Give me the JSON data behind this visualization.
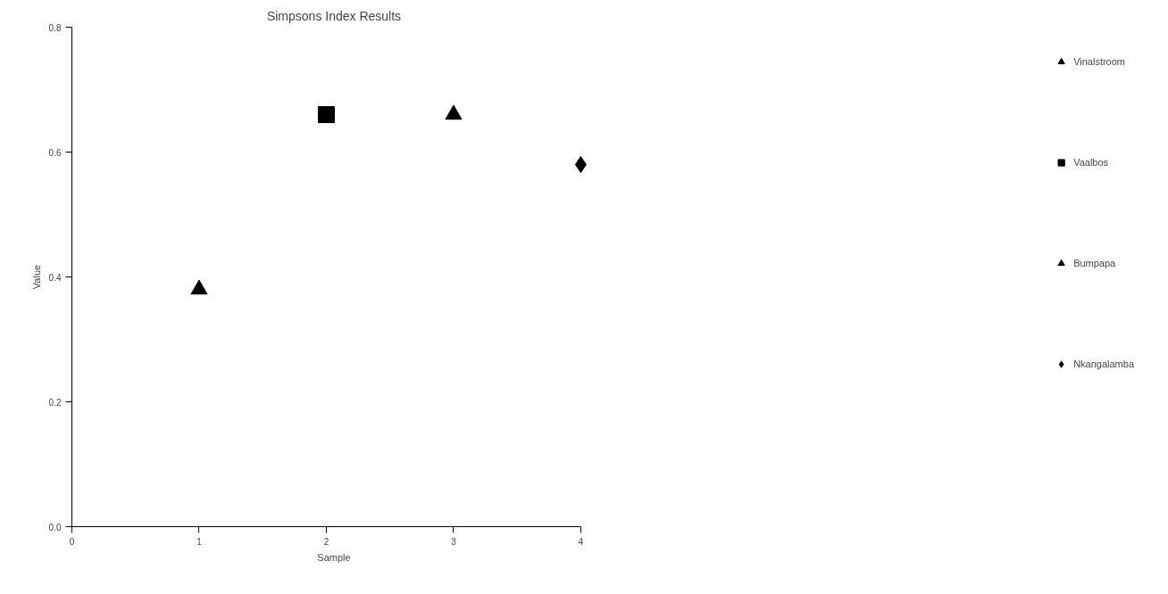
{
  "chart_data": {
    "type": "scatter",
    "title": "Simpsons Index Results",
    "xlabel": "Sample",
    "ylabel": "Value",
    "xlim": [
      0,
      4
    ],
    "xticks": [
      0,
      1,
      2,
      3,
      4
    ],
    "ylim": [
      0,
      0.8
    ],
    "yticks": [
      {
        "value": 0,
        "label": "0.0"
      },
      0.2,
      0.4,
      0.6,
      0.8
    ],
    "grid": false,
    "legend": "right",
    "series": [
      {
        "name": "Vinalstroom",
        "color": "#000000",
        "marker": "triangle",
        "x": [
          1
        ],
        "values": [
          0.38
        ]
      },
      {
        "name": "Vaalbos",
        "color": "#000000",
        "marker": "square",
        "x": [
          2
        ],
        "values": [
          0.66
        ]
      },
      {
        "name": "Bumpapa",
        "color": "#000000",
        "marker": "triangle",
        "x": [
          3
        ],
        "values": [
          0.66
        ]
      },
      {
        "name": "Nkangalamba",
        "color": "#000000",
        "marker": "diamond",
        "x": [
          4
        ],
        "values": [
          0.58
        ]
      }
    ]
  }
}
